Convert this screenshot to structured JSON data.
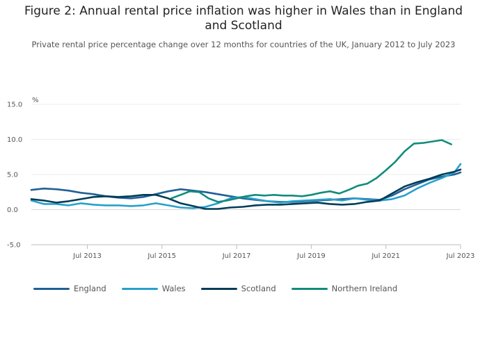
{
  "title": "Figure 2: Annual rental price inflation was higher in Wales than in England and Scotland",
  "subtitle": "Private rental price percentage change over 12 months for countries of the UK, January 2012 to July 2023",
  "chart_data": {
    "type": "line",
    "ylabel": "%",
    "ylim": [
      -5,
      15
    ],
    "yticks": [
      "15.0",
      "10.0",
      "5.0",
      "0.0",
      "-5.0"
    ],
    "ytick_values": [
      15,
      10,
      5,
      0,
      -5
    ],
    "xlim": [
      "2012-01",
      "2023-07"
    ],
    "xticks": [
      "Jul 2013",
      "Jul 2015",
      "Jul 2017",
      "Jul 2019",
      "Jul 2021",
      "Jul 2023"
    ],
    "xtick_values": [
      "2013-07",
      "2015-07",
      "2017-07",
      "2019-07",
      "2021-07",
      "2023-07"
    ],
    "grid": true,
    "legend_position": "bottom",
    "series": [
      {
        "name": "England",
        "color": "#206095",
        "points": [
          [
            "2012-01",
            2.8
          ],
          [
            "2012-05",
            3.0
          ],
          [
            "2012-09",
            2.9
          ],
          [
            "2013-01",
            2.7
          ],
          [
            "2013-05",
            2.4
          ],
          [
            "2013-09",
            2.2
          ],
          [
            "2014-01",
            1.9
          ],
          [
            "2014-05",
            1.7
          ],
          [
            "2014-09",
            1.6
          ],
          [
            "2015-01",
            1.8
          ],
          [
            "2015-05",
            2.2
          ],
          [
            "2015-09",
            2.6
          ],
          [
            "2016-01",
            2.9
          ],
          [
            "2016-05",
            2.7
          ],
          [
            "2016-09",
            2.5
          ],
          [
            "2017-01",
            2.2
          ],
          [
            "2017-05",
            1.9
          ],
          [
            "2017-09",
            1.6
          ],
          [
            "2018-01",
            1.4
          ],
          [
            "2018-05",
            1.2
          ],
          [
            "2018-09",
            1.1
          ],
          [
            "2019-01",
            1.1
          ],
          [
            "2019-05",
            1.2
          ],
          [
            "2019-09",
            1.3
          ],
          [
            "2020-01",
            1.4
          ],
          [
            "2020-05",
            1.5
          ],
          [
            "2020-09",
            1.6
          ],
          [
            "2021-01",
            1.5
          ],
          [
            "2021-05",
            1.4
          ],
          [
            "2021-09",
            2.0
          ],
          [
            "2022-01",
            2.9
          ],
          [
            "2022-05",
            3.6
          ],
          [
            "2022-09",
            4.3
          ],
          [
            "2023-01",
            4.7
          ],
          [
            "2023-05",
            5.0
          ],
          [
            "2023-07",
            5.3
          ]
        ]
      },
      {
        "name": "Wales",
        "color": "#27a0cc",
        "points": [
          [
            "2012-01",
            1.3
          ],
          [
            "2012-05",
            0.8
          ],
          [
            "2012-09",
            0.8
          ],
          [
            "2013-01",
            0.6
          ],
          [
            "2013-05",
            0.9
          ],
          [
            "2013-09",
            0.7
          ],
          [
            "2014-01",
            0.6
          ],
          [
            "2014-05",
            0.6
          ],
          [
            "2014-09",
            0.5
          ],
          [
            "2015-01",
            0.6
          ],
          [
            "2015-05",
            0.9
          ],
          [
            "2015-09",
            0.6
          ],
          [
            "2016-01",
            0.3
          ],
          [
            "2016-05",
            0.2
          ],
          [
            "2016-09",
            0.4
          ],
          [
            "2017-01",
            0.9
          ],
          [
            "2017-05",
            1.6
          ],
          [
            "2017-09",
            1.8
          ],
          [
            "2018-01",
            1.5
          ],
          [
            "2018-05",
            1.2
          ],
          [
            "2018-09",
            1.0
          ],
          [
            "2019-01",
            1.2
          ],
          [
            "2019-05",
            1.3
          ],
          [
            "2019-09",
            1.4
          ],
          [
            "2020-01",
            1.5
          ],
          [
            "2020-05",
            1.3
          ],
          [
            "2020-09",
            1.6
          ],
          [
            "2021-01",
            1.4
          ],
          [
            "2021-05",
            1.3
          ],
          [
            "2021-09",
            1.5
          ],
          [
            "2022-01",
            2.0
          ],
          [
            "2022-05",
            3.0
          ],
          [
            "2022-09",
            3.8
          ],
          [
            "2023-01",
            4.5
          ],
          [
            "2023-05",
            5.3
          ],
          [
            "2023-07",
            6.5
          ]
        ]
      },
      {
        "name": "Scotland",
        "color": "#003c57",
        "points": [
          [
            "2012-01",
            1.5
          ],
          [
            "2012-05",
            1.3
          ],
          [
            "2012-09",
            1.0
          ],
          [
            "2013-01",
            1.2
          ],
          [
            "2013-05",
            1.5
          ],
          [
            "2013-09",
            1.8
          ],
          [
            "2014-01",
            1.9
          ],
          [
            "2014-05",
            1.8
          ],
          [
            "2014-09",
            1.9
          ],
          [
            "2015-01",
            2.1
          ],
          [
            "2015-05",
            2.1
          ],
          [
            "2015-09",
            1.6
          ],
          [
            "2016-01",
            0.9
          ],
          [
            "2016-05",
            0.5
          ],
          [
            "2016-09",
            0.1
          ],
          [
            "2017-01",
            0.1
          ],
          [
            "2017-05",
            0.3
          ],
          [
            "2017-09",
            0.4
          ],
          [
            "2018-01",
            0.6
          ],
          [
            "2018-05",
            0.7
          ],
          [
            "2018-09",
            0.7
          ],
          [
            "2019-01",
            0.8
          ],
          [
            "2019-05",
            0.9
          ],
          [
            "2019-09",
            1.0
          ],
          [
            "2020-01",
            0.8
          ],
          [
            "2020-05",
            0.7
          ],
          [
            "2020-09",
            0.8
          ],
          [
            "2021-01",
            1.1
          ],
          [
            "2021-05",
            1.3
          ],
          [
            "2021-09",
            2.3
          ],
          [
            "2022-01",
            3.3
          ],
          [
            "2022-05",
            3.9
          ],
          [
            "2022-09",
            4.4
          ],
          [
            "2023-01",
            5.0
          ],
          [
            "2023-05",
            5.4
          ],
          [
            "2023-07",
            5.7
          ]
        ]
      },
      {
        "name": "Northern Ireland",
        "color": "#118c7b",
        "points": [
          [
            "2015-10",
            1.6
          ],
          [
            "2016-01",
            2.1
          ],
          [
            "2016-04",
            2.6
          ],
          [
            "2016-07",
            2.5
          ],
          [
            "2016-10",
            1.6
          ],
          [
            "2017-01",
            1.1
          ],
          [
            "2017-04",
            1.3
          ],
          [
            "2017-07",
            1.6
          ],
          [
            "2017-10",
            1.9
          ],
          [
            "2018-01",
            2.1
          ],
          [
            "2018-04",
            2.0
          ],
          [
            "2018-07",
            2.1
          ],
          [
            "2018-10",
            2.0
          ],
          [
            "2019-01",
            2.0
          ],
          [
            "2019-04",
            1.9
          ],
          [
            "2019-07",
            2.1
          ],
          [
            "2019-10",
            2.4
          ],
          [
            "2020-01",
            2.6
          ],
          [
            "2020-04",
            2.3
          ],
          [
            "2020-07",
            2.8
          ],
          [
            "2020-10",
            3.4
          ],
          [
            "2021-01",
            3.7
          ],
          [
            "2021-04",
            4.5
          ],
          [
            "2021-07",
            5.6
          ],
          [
            "2021-10",
            6.8
          ],
          [
            "2022-01",
            8.3
          ],
          [
            "2022-04",
            9.4
          ],
          [
            "2022-07",
            9.5
          ],
          [
            "2022-10",
            9.7
          ],
          [
            "2023-01",
            9.9
          ],
          [
            "2023-04",
            9.3
          ]
        ]
      }
    ]
  }
}
